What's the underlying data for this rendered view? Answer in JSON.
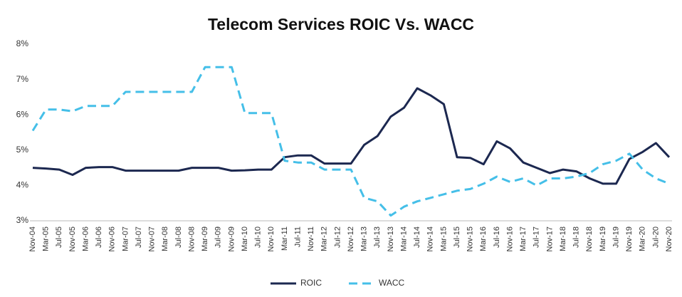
{
  "chart_data": {
    "type": "line",
    "title": "Telecom Services ROIC Vs. WACC",
    "categories": [
      "Nov-04",
      "Mar-05",
      "Jul-05",
      "Nov-05",
      "Mar-06",
      "Jul-06",
      "Nov-06",
      "Mar-07",
      "Jul-07",
      "Nov-07",
      "Mar-08",
      "Jul-08",
      "Nov-08",
      "Mar-09",
      "Jul-09",
      "Nov-09",
      "Mar-10",
      "Jul-10",
      "Nov-10",
      "Mar-11",
      "Jul-11",
      "Nov-11",
      "Mar-12",
      "Jul-12",
      "Nov-12",
      "Mar-13",
      "Jul-13",
      "Nov-13",
      "Mar-14",
      "Jul-14",
      "Nov-14",
      "Mar-15",
      "Jul-15",
      "Nov-15",
      "Mar-16",
      "Jul-16",
      "Nov-16",
      "Mar-17",
      "Jul-17",
      "Nov-17",
      "Mar-18",
      "Jul-18",
      "Nov-18",
      "Mar-19",
      "Jul-19",
      "Nov-19",
      "Mar-20",
      "Jul-20",
      "Nov-20"
    ],
    "series": [
      {
        "name": "ROIC",
        "color": "#1c2850",
        "line_style": "solid",
        "values": [
          4.5,
          4.48,
          4.45,
          4.3,
          4.5,
          4.52,
          4.52,
          4.42,
          4.42,
          4.42,
          4.42,
          4.42,
          4.5,
          4.5,
          4.5,
          4.42,
          4.43,
          4.45,
          4.45,
          4.8,
          4.85,
          4.85,
          4.62,
          4.62,
          4.62,
          5.15,
          5.4,
          5.95,
          6.2,
          6.75,
          6.55,
          6.3,
          4.8,
          4.78,
          4.6,
          5.25,
          5.05,
          4.65,
          4.5,
          4.35,
          4.45,
          4.4,
          4.2,
          4.05,
          4.05,
          4.75,
          4.95,
          5.2,
          4.8
        ]
      },
      {
        "name": "WACC",
        "color": "#45bfe8",
        "line_style": "dashed",
        "values": [
          5.55,
          6.15,
          6.15,
          6.1,
          6.25,
          6.25,
          6.25,
          6.65,
          6.65,
          6.65,
          6.65,
          6.65,
          6.65,
          7.35,
          7.35,
          7.35,
          6.05,
          6.05,
          6.05,
          4.7,
          4.65,
          4.65,
          4.45,
          4.45,
          4.45,
          3.65,
          3.55,
          3.15,
          3.4,
          3.55,
          3.65,
          3.75,
          3.85,
          3.9,
          4.05,
          4.25,
          4.1,
          4.2,
          4.0,
          4.2,
          4.2,
          4.25,
          4.35,
          4.6,
          4.7,
          4.9,
          4.45,
          4.2,
          4.05
        ]
      }
    ],
    "ylim": [
      3,
      8
    ],
    "yticks": [
      {
        "value": 3,
        "label": "3%"
      },
      {
        "value": 4,
        "label": "4%"
      },
      {
        "value": 5,
        "label": "5%"
      },
      {
        "value": 6,
        "label": "6%"
      },
      {
        "value": 7,
        "label": "7%"
      },
      {
        "value": 8,
        "label": "8%"
      }
    ],
    "grid": false,
    "legend": "bottom"
  }
}
